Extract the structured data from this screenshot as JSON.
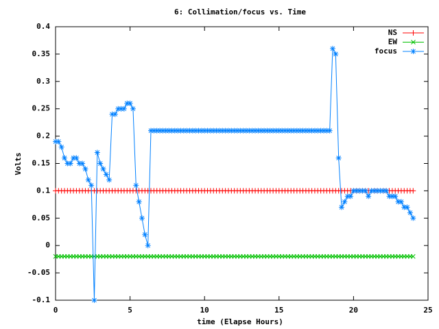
{
  "chart_data": {
    "type": "line",
    "title": "6: Collimation/focus vs. Time",
    "xlabel": "time (Elapse Hours)",
    "ylabel": "Volts",
    "xlim": [
      0,
      25
    ],
    "xticks": [
      0,
      5,
      10,
      15,
      20,
      25
    ],
    "ylim": [
      -0.1,
      0.4
    ],
    "yticks": [
      -0.1,
      -0.05,
      0,
      0.05,
      0.1,
      0.15,
      0.2,
      0.25,
      0.3,
      0.35,
      0.4
    ],
    "legend": "top right",
    "x": [
      0,
      0.2,
      0.4,
      0.6,
      0.8,
      1,
      1.2,
      1.4,
      1.6,
      1.8,
      2,
      2.2,
      2.4,
      2.6,
      2.8,
      3,
      3.2,
      3.4,
      3.6,
      3.8,
      4,
      4.2,
      4.4,
      4.6,
      4.8,
      5,
      5.2,
      5.4,
      5.6,
      5.8,
      6,
      6.2,
      6.4,
      6.6,
      6.8,
      7,
      7.2,
      7.4,
      7.6,
      7.8,
      8,
      8.2,
      8.4,
      8.6,
      8.8,
      9,
      9.2,
      9.4,
      9.6,
      9.8,
      10,
      10.2,
      10.4,
      10.6,
      10.8,
      11,
      11.2,
      11.4,
      11.6,
      11.8,
      12,
      12.2,
      12.4,
      12.6,
      12.8,
      13,
      13.2,
      13.4,
      13.6,
      13.8,
      14,
      14.2,
      14.4,
      14.6,
      14.8,
      15,
      15.2,
      15.4,
      15.6,
      15.8,
      16,
      16.2,
      16.4,
      16.6,
      16.8,
      17,
      17.2,
      17.4,
      17.6,
      17.8,
      18,
      18.2,
      18.4,
      18.6,
      18.8,
      19,
      19.2,
      19.4,
      19.6,
      19.8,
      20,
      20.2,
      20.4,
      20.6,
      20.8,
      21,
      21.2,
      21.4,
      21.6,
      21.8,
      22,
      22.2,
      22.4,
      22.6,
      22.8,
      23,
      23.2,
      23.4,
      23.6,
      23.8,
      24
    ],
    "series": [
      {
        "name": "NS",
        "color": "#ff0000",
        "marker": "plus",
        "values": [
          0.1,
          0.1,
          0.1,
          0.1,
          0.1,
          0.1,
          0.1,
          0.1,
          0.1,
          0.1,
          0.1,
          0.1,
          0.1,
          0.1,
          0.1,
          0.1,
          0.1,
          0.1,
          0.1,
          0.1,
          0.1,
          0.1,
          0.1,
          0.1,
          0.1,
          0.1,
          0.1,
          0.1,
          0.1,
          0.1,
          0.1,
          0.1,
          0.1,
          0.1,
          0.1,
          0.1,
          0.1,
          0.1,
          0.1,
          0.1,
          0.1,
          0.1,
          0.1,
          0.1,
          0.1,
          0.1,
          0.1,
          0.1,
          0.1,
          0.1,
          0.1,
          0.1,
          0.1,
          0.1,
          0.1,
          0.1,
          0.1,
          0.1,
          0.1,
          0.1,
          0.1,
          0.1,
          0.1,
          0.1,
          0.1,
          0.1,
          0.1,
          0.1,
          0.1,
          0.1,
          0.1,
          0.1,
          0.1,
          0.1,
          0.1,
          0.1,
          0.1,
          0.1,
          0.1,
          0.1,
          0.1,
          0.1,
          0.1,
          0.1,
          0.1,
          0.1,
          0.1,
          0.1,
          0.1,
          0.1,
          0.1,
          0.1,
          0.1,
          0.1,
          0.1,
          0.1,
          0.1,
          0.1,
          0.1,
          0.1,
          0.1,
          0.1,
          0.1,
          0.1,
          0.1,
          0.1,
          0.1,
          0.1,
          0.1,
          0.1,
          0.1,
          0.1,
          0.1,
          0.1,
          0.1,
          0.1,
          0.1,
          0.1,
          0.1,
          0.1,
          0.1
        ]
      },
      {
        "name": "EW",
        "color": "#00c000",
        "marker": "cross",
        "values": [
          -0.02,
          -0.02,
          -0.02,
          -0.02,
          -0.02,
          -0.02,
          -0.02,
          -0.02,
          -0.02,
          -0.02,
          -0.02,
          -0.02,
          -0.02,
          -0.02,
          -0.02,
          -0.02,
          -0.02,
          -0.02,
          -0.02,
          -0.02,
          -0.02,
          -0.02,
          -0.02,
          -0.02,
          -0.02,
          -0.02,
          -0.02,
          -0.02,
          -0.02,
          -0.02,
          -0.02,
          -0.02,
          -0.02,
          -0.02,
          -0.02,
          -0.02,
          -0.02,
          -0.02,
          -0.02,
          -0.02,
          -0.02,
          -0.02,
          -0.02,
          -0.02,
          -0.02,
          -0.02,
          -0.02,
          -0.02,
          -0.02,
          -0.02,
          -0.02,
          -0.02,
          -0.02,
          -0.02,
          -0.02,
          -0.02,
          -0.02,
          -0.02,
          -0.02,
          -0.02,
          -0.02,
          -0.02,
          -0.02,
          -0.02,
          -0.02,
          -0.02,
          -0.02,
          -0.02,
          -0.02,
          -0.02,
          -0.02,
          -0.02,
          -0.02,
          -0.02,
          -0.02,
          -0.02,
          -0.02,
          -0.02,
          -0.02,
          -0.02,
          -0.02,
          -0.02,
          -0.02,
          -0.02,
          -0.02,
          -0.02,
          -0.02,
          -0.02,
          -0.02,
          -0.02,
          -0.02,
          -0.02,
          -0.02,
          -0.02,
          -0.02,
          -0.02,
          -0.02,
          -0.02,
          -0.02,
          -0.02,
          -0.02,
          -0.02,
          -0.02,
          -0.02,
          -0.02,
          -0.02,
          -0.02,
          -0.02,
          -0.02,
          -0.02,
          -0.02,
          -0.02,
          -0.02,
          -0.02,
          -0.02,
          -0.02,
          -0.02,
          -0.02,
          -0.02,
          -0.02,
          -0.02
        ]
      },
      {
        "name": "focus",
        "color": "#0080ff",
        "marker": "star",
        "values": [
          0.19,
          0.19,
          0.18,
          0.16,
          0.15,
          0.15,
          0.16,
          0.16,
          0.15,
          0.15,
          0.14,
          0.12,
          0.11,
          -0.1,
          0.17,
          0.15,
          0.14,
          0.13,
          0.12,
          0.24,
          0.24,
          0.25,
          0.25,
          0.25,
          0.26,
          0.26,
          0.25,
          0.11,
          0.08,
          0.05,
          0.02,
          0,
          0.21,
          0.21,
          0.21,
          0.21,
          0.21,
          0.21,
          0.21,
          0.21,
          0.21,
          0.21,
          0.21,
          0.21,
          0.21,
          0.21,
          0.21,
          0.21,
          0.21,
          0.21,
          0.21,
          0.21,
          0.21,
          0.21,
          0.21,
          0.21,
          0.21,
          0.21,
          0.21,
          0.21,
          0.21,
          0.21,
          0.21,
          0.21,
          0.21,
          0.21,
          0.21,
          0.21,
          0.21,
          0.21,
          0.21,
          0.21,
          0.21,
          0.21,
          0.21,
          0.21,
          0.21,
          0.21,
          0.21,
          0.21,
          0.21,
          0.21,
          0.21,
          0.21,
          0.21,
          0.21,
          0.21,
          0.21,
          0.21,
          0.21,
          0.21,
          0.21,
          0.21,
          0.36,
          0.35,
          0.16,
          0.07,
          0.08,
          0.09,
          0.09,
          0.1,
          0.1,
          0.1,
          0.1,
          0.1,
          0.09,
          0.1,
          0.1,
          0.1,
          0.1,
          0.1,
          0.1,
          0.09,
          0.09,
          0.09,
          0.08,
          0.08,
          0.07,
          0.07,
          0.06,
          0.05
        ]
      }
    ]
  }
}
